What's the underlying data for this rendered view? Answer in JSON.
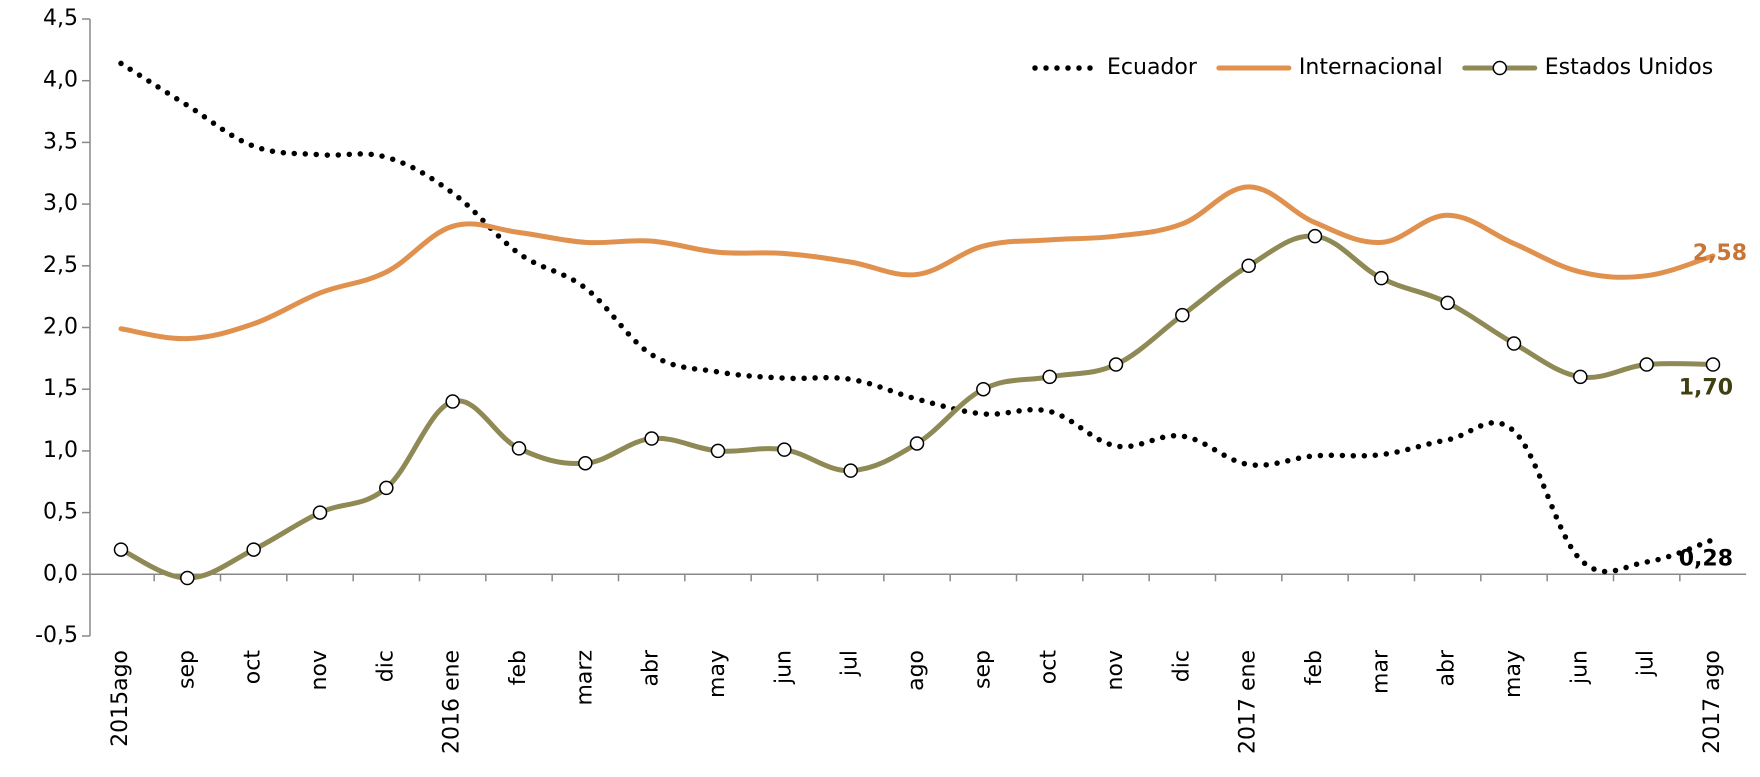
{
  "chart_data": {
    "type": "line",
    "categories": [
      "2015ago",
      "sep",
      "oct",
      "nov",
      "dic",
      "2016 ene",
      "feb",
      "marz",
      "abr",
      "may",
      "jun",
      "jul",
      "ago",
      "sep",
      "oct",
      "nov",
      "dic",
      "2017 ene",
      "feb",
      "mar",
      "abr",
      "may",
      "jun",
      "jul",
      "2017 ago"
    ],
    "series": [
      {
        "name": "Ecuador",
        "color": "#000000",
        "style": "dotted",
        "markers": false,
        "values": [
          4.14,
          3.8,
          3.47,
          3.4,
          3.38,
          3.09,
          2.6,
          2.32,
          1.78,
          1.64,
          1.59,
          1.58,
          1.42,
          1.3,
          1.32,
          1.04,
          1.12,
          0.89,
          0.96,
          0.97,
          1.09,
          1.16,
          0.12,
          0.1,
          0.28
        ],
        "value_labels": [
          null,
          null,
          null,
          null,
          null,
          null,
          null,
          null,
          null,
          null,
          null,
          null,
          null,
          null,
          null,
          null,
          null,
          null,
          null,
          null,
          null,
          null,
          null,
          null,
          "0,28"
        ],
        "label_color": "#000000"
      },
      {
        "name": "Internacional",
        "color": "#e0914e",
        "style": "solid",
        "markers": false,
        "values": [
          1.99,
          1.91,
          2.03,
          2.28,
          2.45,
          2.82,
          2.77,
          2.69,
          2.7,
          2.61,
          2.6,
          2.53,
          2.43,
          2.66,
          2.71,
          2.74,
          2.84,
          3.14,
          2.85,
          2.69,
          2.91,
          2.68,
          2.45,
          2.42,
          2.58
        ],
        "value_labels": [
          null,
          null,
          null,
          null,
          null,
          null,
          null,
          null,
          null,
          null,
          null,
          null,
          null,
          null,
          null,
          null,
          null,
          null,
          null,
          null,
          null,
          null,
          null,
          null,
          "2,58"
        ],
        "label_color": "#c97535"
      },
      {
        "name": "Estados Unidos",
        "color": "#8f8a55",
        "style": "solid",
        "markers": true,
        "values": [
          0.2,
          -0.03,
          0.2,
          0.5,
          0.7,
          1.4,
          1.02,
          0.9,
          1.1,
          1.0,
          1.01,
          0.84,
          1.06,
          1.5,
          1.6,
          1.7,
          2.1,
          2.5,
          2.74,
          2.4,
          2.2,
          1.87,
          1.6,
          1.7,
          1.7
        ],
        "value_labels": [
          null,
          null,
          null,
          null,
          null,
          null,
          null,
          null,
          null,
          null,
          null,
          null,
          null,
          null,
          null,
          null,
          null,
          null,
          null,
          null,
          null,
          null,
          null,
          null,
          "1,70"
        ],
        "label_color": "#3f3f12"
      }
    ],
    "ylim": [
      -0.5,
      4.5
    ],
    "yticks": [
      {
        "value": -0.5,
        "label": "-0,5"
      },
      {
        "value": 0,
        "label": "0,0"
      },
      {
        "value": 0.5,
        "label": "0,5"
      },
      {
        "value": 1,
        "label": "1,0"
      },
      {
        "value": 1.5,
        "label": "1,5"
      },
      {
        "value": 2,
        "label": "2,0"
      },
      {
        "value": 2.5,
        "label": "2,5"
      },
      {
        "value": 3,
        "label": "3,0"
      },
      {
        "value": 3.5,
        "label": "3,5"
      },
      {
        "value": 4,
        "label": "4,0"
      },
      {
        "value": 4.5,
        "label": "4,5"
      }
    ],
    "grid": false,
    "legend": "upper right"
  }
}
